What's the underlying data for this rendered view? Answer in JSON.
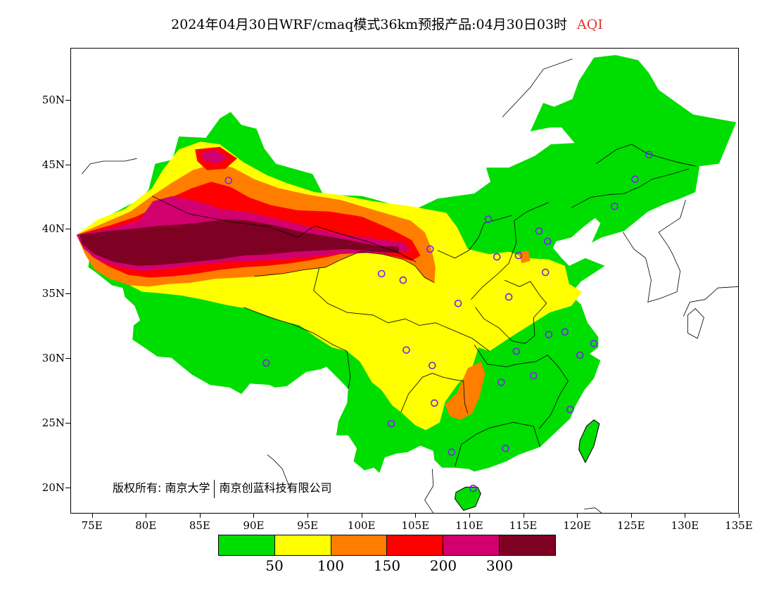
{
  "title": {
    "main": "2024年04月30日WRF/cmaq模式36km预报产品:04月30日03时",
    "variable": "AQI",
    "variable_color": "#e8322e"
  },
  "map": {
    "projection": "lat-lon",
    "lon_range": [
      73,
      135
    ],
    "lat_range": [
      18,
      54
    ],
    "lat_labels": [
      {
        "lat": 50,
        "text": "50N"
      },
      {
        "lat": 45,
        "text": "45N"
      },
      {
        "lat": 40,
        "text": "40N"
      },
      {
        "lat": 35,
        "text": "35N"
      },
      {
        "lat": 30,
        "text": "30N"
      },
      {
        "lat": 25,
        "text": "25N"
      },
      {
        "lat": 20,
        "text": "20N"
      }
    ],
    "lon_labels": [
      {
        "lon": 75,
        "text": "75E"
      },
      {
        "lon": 80,
        "text": "80E"
      },
      {
        "lon": 85,
        "text": "85E"
      },
      {
        "lon": 90,
        "text": "90E"
      },
      {
        "lon": 95,
        "text": "95E"
      },
      {
        "lon": 100,
        "text": "100E"
      },
      {
        "lon": 105,
        "text": "105E"
      },
      {
        "lon": 110,
        "text": "110E"
      },
      {
        "lon": 115,
        "text": "115E"
      },
      {
        "lon": 120,
        "text": "120E"
      },
      {
        "lon": 125,
        "text": "125E"
      },
      {
        "lon": 130,
        "text": "130E"
      },
      {
        "lon": 135,
        "text": "135E"
      }
    ],
    "aqi_levels_colors": {
      "0-50": "#00dd00",
      "50-100": "#ffff00",
      "100-150": "#ff7e00",
      "150-200": "#ff0000",
      "200-300": "#d2006e",
      "300+": "#7e0023"
    },
    "city_marker_color": "#7a22ee",
    "city_markers": [
      {
        "lon": 87.6,
        "lat": 43.8
      },
      {
        "lon": 91.1,
        "lat": 29.7
      },
      {
        "lon": 101.8,
        "lat": 36.6
      },
      {
        "lon": 103.8,
        "lat": 36.1
      },
      {
        "lon": 106.3,
        "lat": 38.5
      },
      {
        "lon": 111.7,
        "lat": 40.8
      },
      {
        "lon": 112.5,
        "lat": 37.9
      },
      {
        "lon": 114.5,
        "lat": 38.0
      },
      {
        "lon": 116.4,
        "lat": 39.9
      },
      {
        "lon": 117.2,
        "lat": 39.1
      },
      {
        "lon": 117.0,
        "lat": 36.7
      },
      {
        "lon": 113.6,
        "lat": 34.8
      },
      {
        "lon": 108.9,
        "lat": 34.3
      },
      {
        "lon": 104.1,
        "lat": 30.7
      },
      {
        "lon": 106.5,
        "lat": 29.5
      },
      {
        "lon": 106.7,
        "lat": 26.6
      },
      {
        "lon": 102.7,
        "lat": 25.0
      },
      {
        "lon": 108.3,
        "lat": 22.8
      },
      {
        "lon": 113.3,
        "lat": 23.1
      },
      {
        "lon": 110.3,
        "lat": 20.0
      },
      {
        "lon": 112.9,
        "lat": 28.2
      },
      {
        "lon": 115.9,
        "lat": 28.7
      },
      {
        "lon": 114.3,
        "lat": 30.6
      },
      {
        "lon": 117.3,
        "lat": 31.9
      },
      {
        "lon": 118.8,
        "lat": 32.1
      },
      {
        "lon": 120.2,
        "lat": 30.3
      },
      {
        "lon": 121.5,
        "lat": 31.2
      },
      {
        "lon": 119.3,
        "lat": 26.1
      },
      {
        "lon": 123.4,
        "lat": 41.8
      },
      {
        "lon": 125.3,
        "lat": 43.9
      },
      {
        "lon": 126.6,
        "lat": 45.8
      }
    ]
  },
  "copyright": {
    "left": "版权所有: 南京大学",
    "right": "南京创蓝科技有限公司"
  },
  "legend": {
    "colors": [
      "#00dd00",
      "#ffff00",
      "#ff7e00",
      "#ff0000",
      "#d2006e",
      "#7e0023"
    ],
    "labels": [
      "50",
      "100",
      "150",
      "200",
      "300"
    ]
  }
}
